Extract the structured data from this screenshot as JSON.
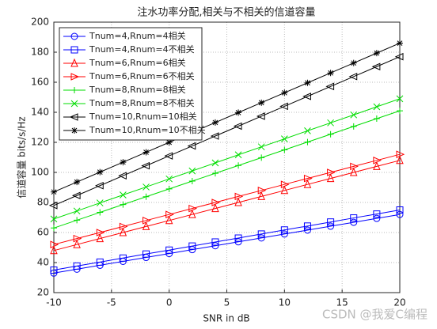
{
  "chart_data": {
    "type": "line",
    "title": "注水功率分配,相关与不相关的信道容量",
    "xlabel": "SNR in dB",
    "ylabel": "信道容量 bits/s/Hz",
    "x": [
      -10,
      -8,
      -6,
      -4,
      -2,
      0,
      2,
      4,
      6,
      8,
      10,
      12,
      14,
      16,
      18,
      20
    ],
    "xlim": [
      -10,
      20
    ],
    "xticks": [
      -10,
      -5,
      0,
      5,
      10,
      15,
      20
    ],
    "ylim": [
      20,
      200
    ],
    "yticks": [
      20,
      40,
      60,
      80,
      100,
      120,
      140,
      160,
      180,
      200
    ],
    "grid": true,
    "legend_position": "upper-left",
    "watermark": "CSDN @我爱C编程",
    "series": [
      {
        "name": "Tnum=4,Rnum=4相关",
        "color": "#0000ff",
        "marker": "o",
        "values": [
          33,
          35.6,
          38.2,
          40.8,
          43.4,
          46,
          48.6,
          51.2,
          53.8,
          56.4,
          59,
          61.6,
          64.2,
          66.8,
          69.4,
          72
        ]
      },
      {
        "name": "Tnum=4,Rnum=4不相关",
        "color": "#0000ff",
        "marker": "s",
        "values": [
          35,
          37.7,
          40.3,
          43,
          45.7,
          48.3,
          51,
          53.7,
          56.3,
          59,
          61.7,
          64.3,
          67,
          69.7,
          72.3,
          75
        ]
      },
      {
        "name": "Tnum=6,Rnum=6相关",
        "color": "#ff0000",
        "marker": "^",
        "values": [
          48,
          52,
          56,
          60,
          64,
          68,
          72,
          76,
          80,
          84,
          88,
          92,
          96,
          100,
          104,
          108
        ]
      },
      {
        "name": "Tnum=6,Rnum=6不相关",
        "color": "#ff0000",
        "marker": ">",
        "values": [
          52,
          56,
          60,
          64,
          68,
          72,
          76,
          80,
          84,
          88,
          92,
          96,
          100,
          104,
          108,
          112
        ]
      },
      {
        "name": "Tnum=8,Rnum=8相关",
        "color": "#00dd00",
        "marker": "+",
        "values": [
          63,
          68.2,
          73.4,
          78.6,
          83.8,
          89,
          94.2,
          99.4,
          104.6,
          109.8,
          115,
          120.2,
          125.4,
          130.6,
          135.8,
          141
        ]
      },
      {
        "name": "Tnum=8,Rnum=8不相关",
        "color": "#00dd00",
        "marker": "x",
        "values": [
          69,
          74.3,
          79.7,
          85,
          90.3,
          95.7,
          101,
          106.3,
          111.7,
          117,
          122.3,
          127.7,
          133,
          138.3,
          143.7,
          149
        ]
      },
      {
        "name": "Tnum=10,Rnum=10相关",
        "color": "#000000",
        "marker": "<",
        "values": [
          78,
          84.6,
          91.2,
          97.8,
          104.4,
          111,
          117.6,
          124.2,
          130.8,
          137.4,
          144,
          150.6,
          157.2,
          163.8,
          170.4,
          177
        ]
      },
      {
        "name": "Tnum=10,Rnum=10不相关",
        "color": "#000000",
        "marker": "*",
        "values": [
          87,
          93.6,
          100.2,
          106.8,
          113.4,
          120,
          126.6,
          133.2,
          139.8,
          146.4,
          153,
          159.6,
          166.2,
          172.8,
          179.4,
          186
        ]
      }
    ]
  }
}
